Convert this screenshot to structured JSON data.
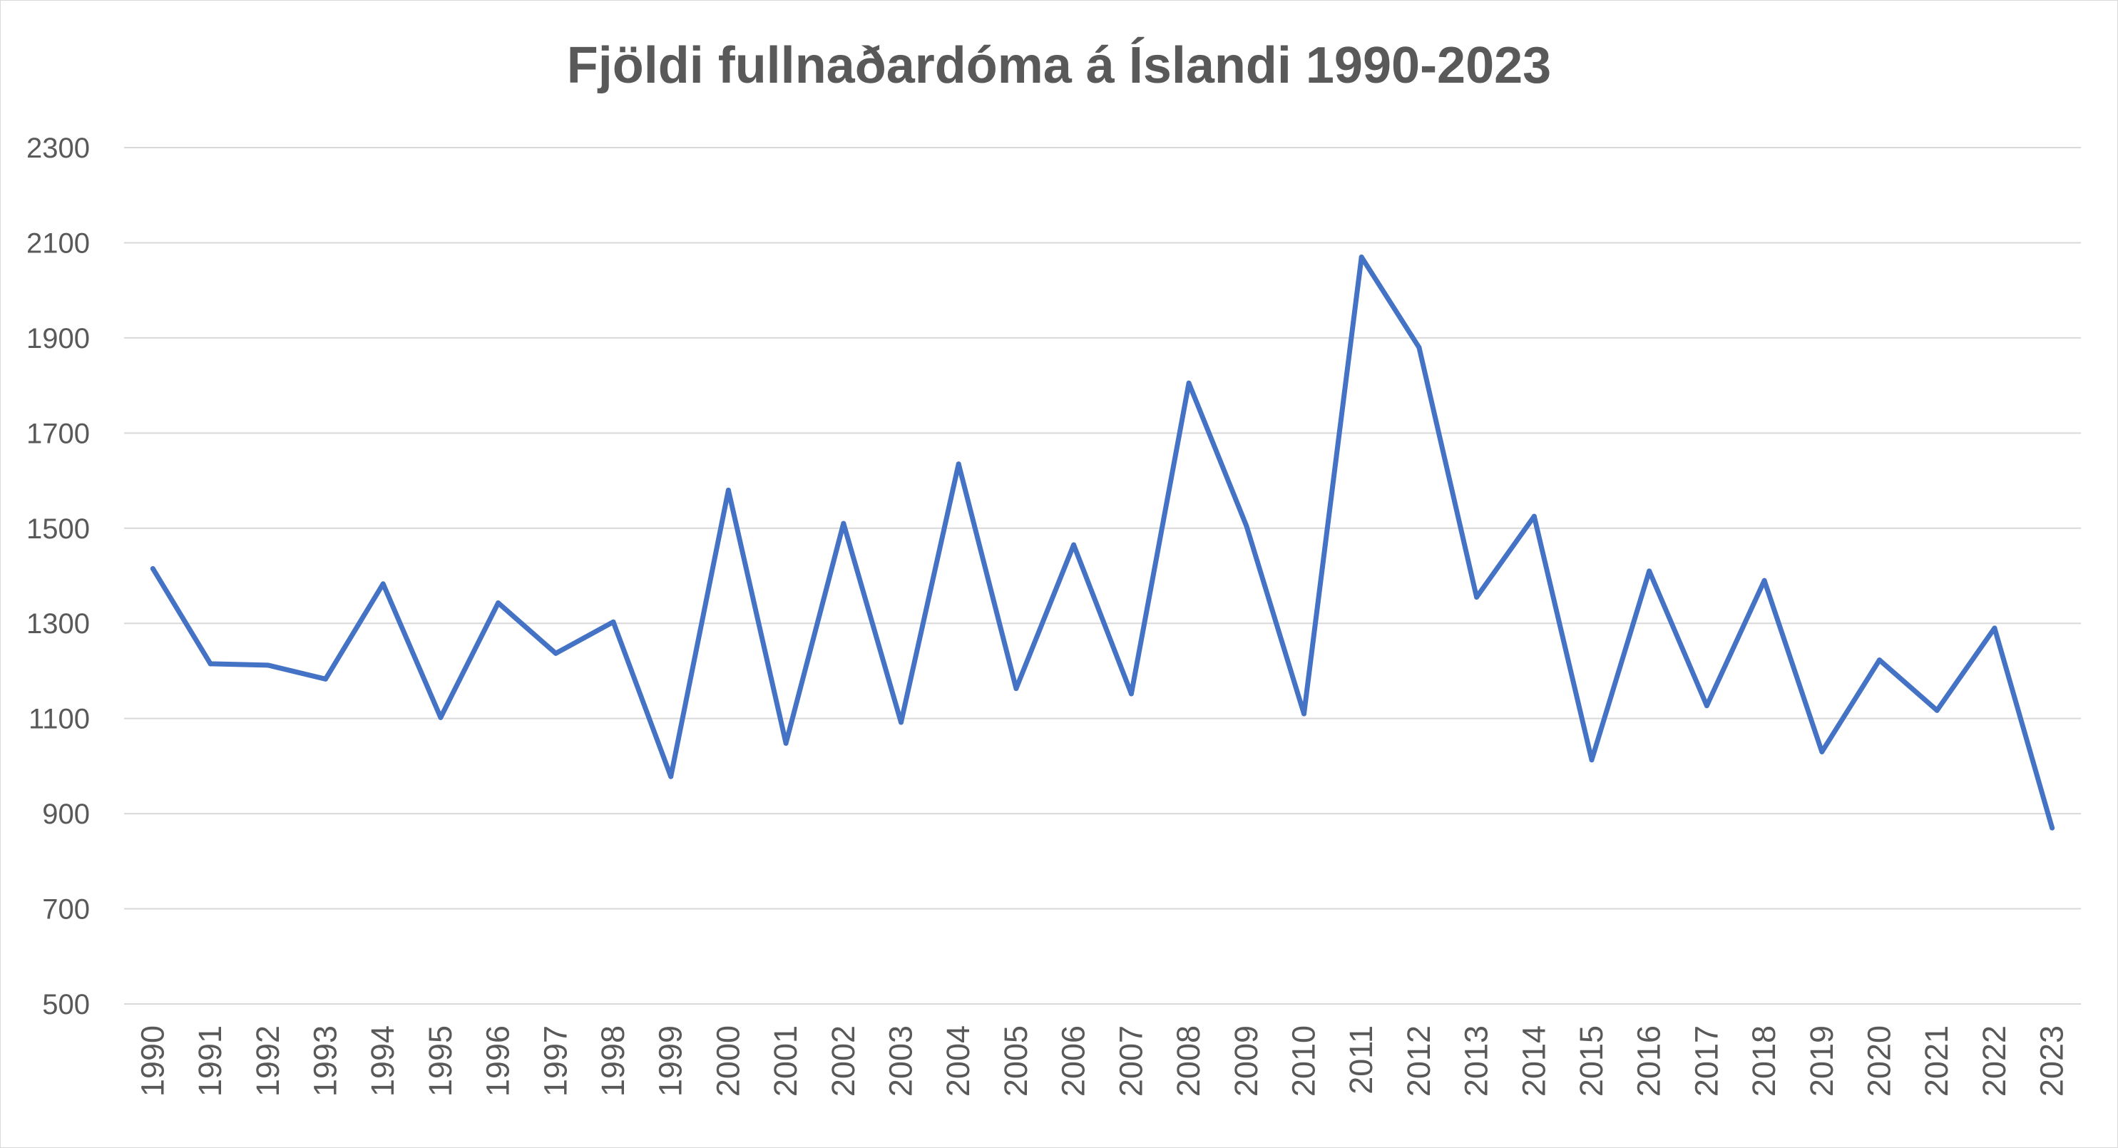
{
  "chart_data": {
    "type": "line",
    "title": "Fjöldi fullnaðardóma á Íslandi 1990-2023",
    "xlabel": "",
    "ylabel": "",
    "ylim": [
      500,
      2300
    ],
    "yticks": [
      500,
      700,
      900,
      1100,
      1300,
      1500,
      1700,
      1900,
      2100,
      2300
    ],
    "grid": true,
    "legend": "none",
    "categories": [
      "1990",
      "1991",
      "1992",
      "1993",
      "1994",
      "1995",
      "1996",
      "1997",
      "1998",
      "1999",
      "2000",
      "2001",
      "2002",
      "2003",
      "2004",
      "2005",
      "2006",
      "2007",
      "2008",
      "2009",
      "2010",
      "2011",
      "2012",
      "2013",
      "2014",
      "2015",
      "2016",
      "2017",
      "2018",
      "2019",
      "2020",
      "2021",
      "2022",
      "2023"
    ],
    "series": [
      {
        "color": "#4472C4",
        "values": [
          1415,
          1215,
          1212,
          1183,
          1383,
          1102,
          1343,
          1237,
          1303,
          978,
          1580,
          1048,
          1510,
          1092,
          1635,
          1163,
          1465,
          1152,
          1805,
          1505,
          1110,
          2070,
          1880,
          1355,
          1525,
          1013,
          1410,
          1127,
          1390,
          1030,
          1223,
          1117,
          1290,
          870
        ]
      }
    ]
  }
}
